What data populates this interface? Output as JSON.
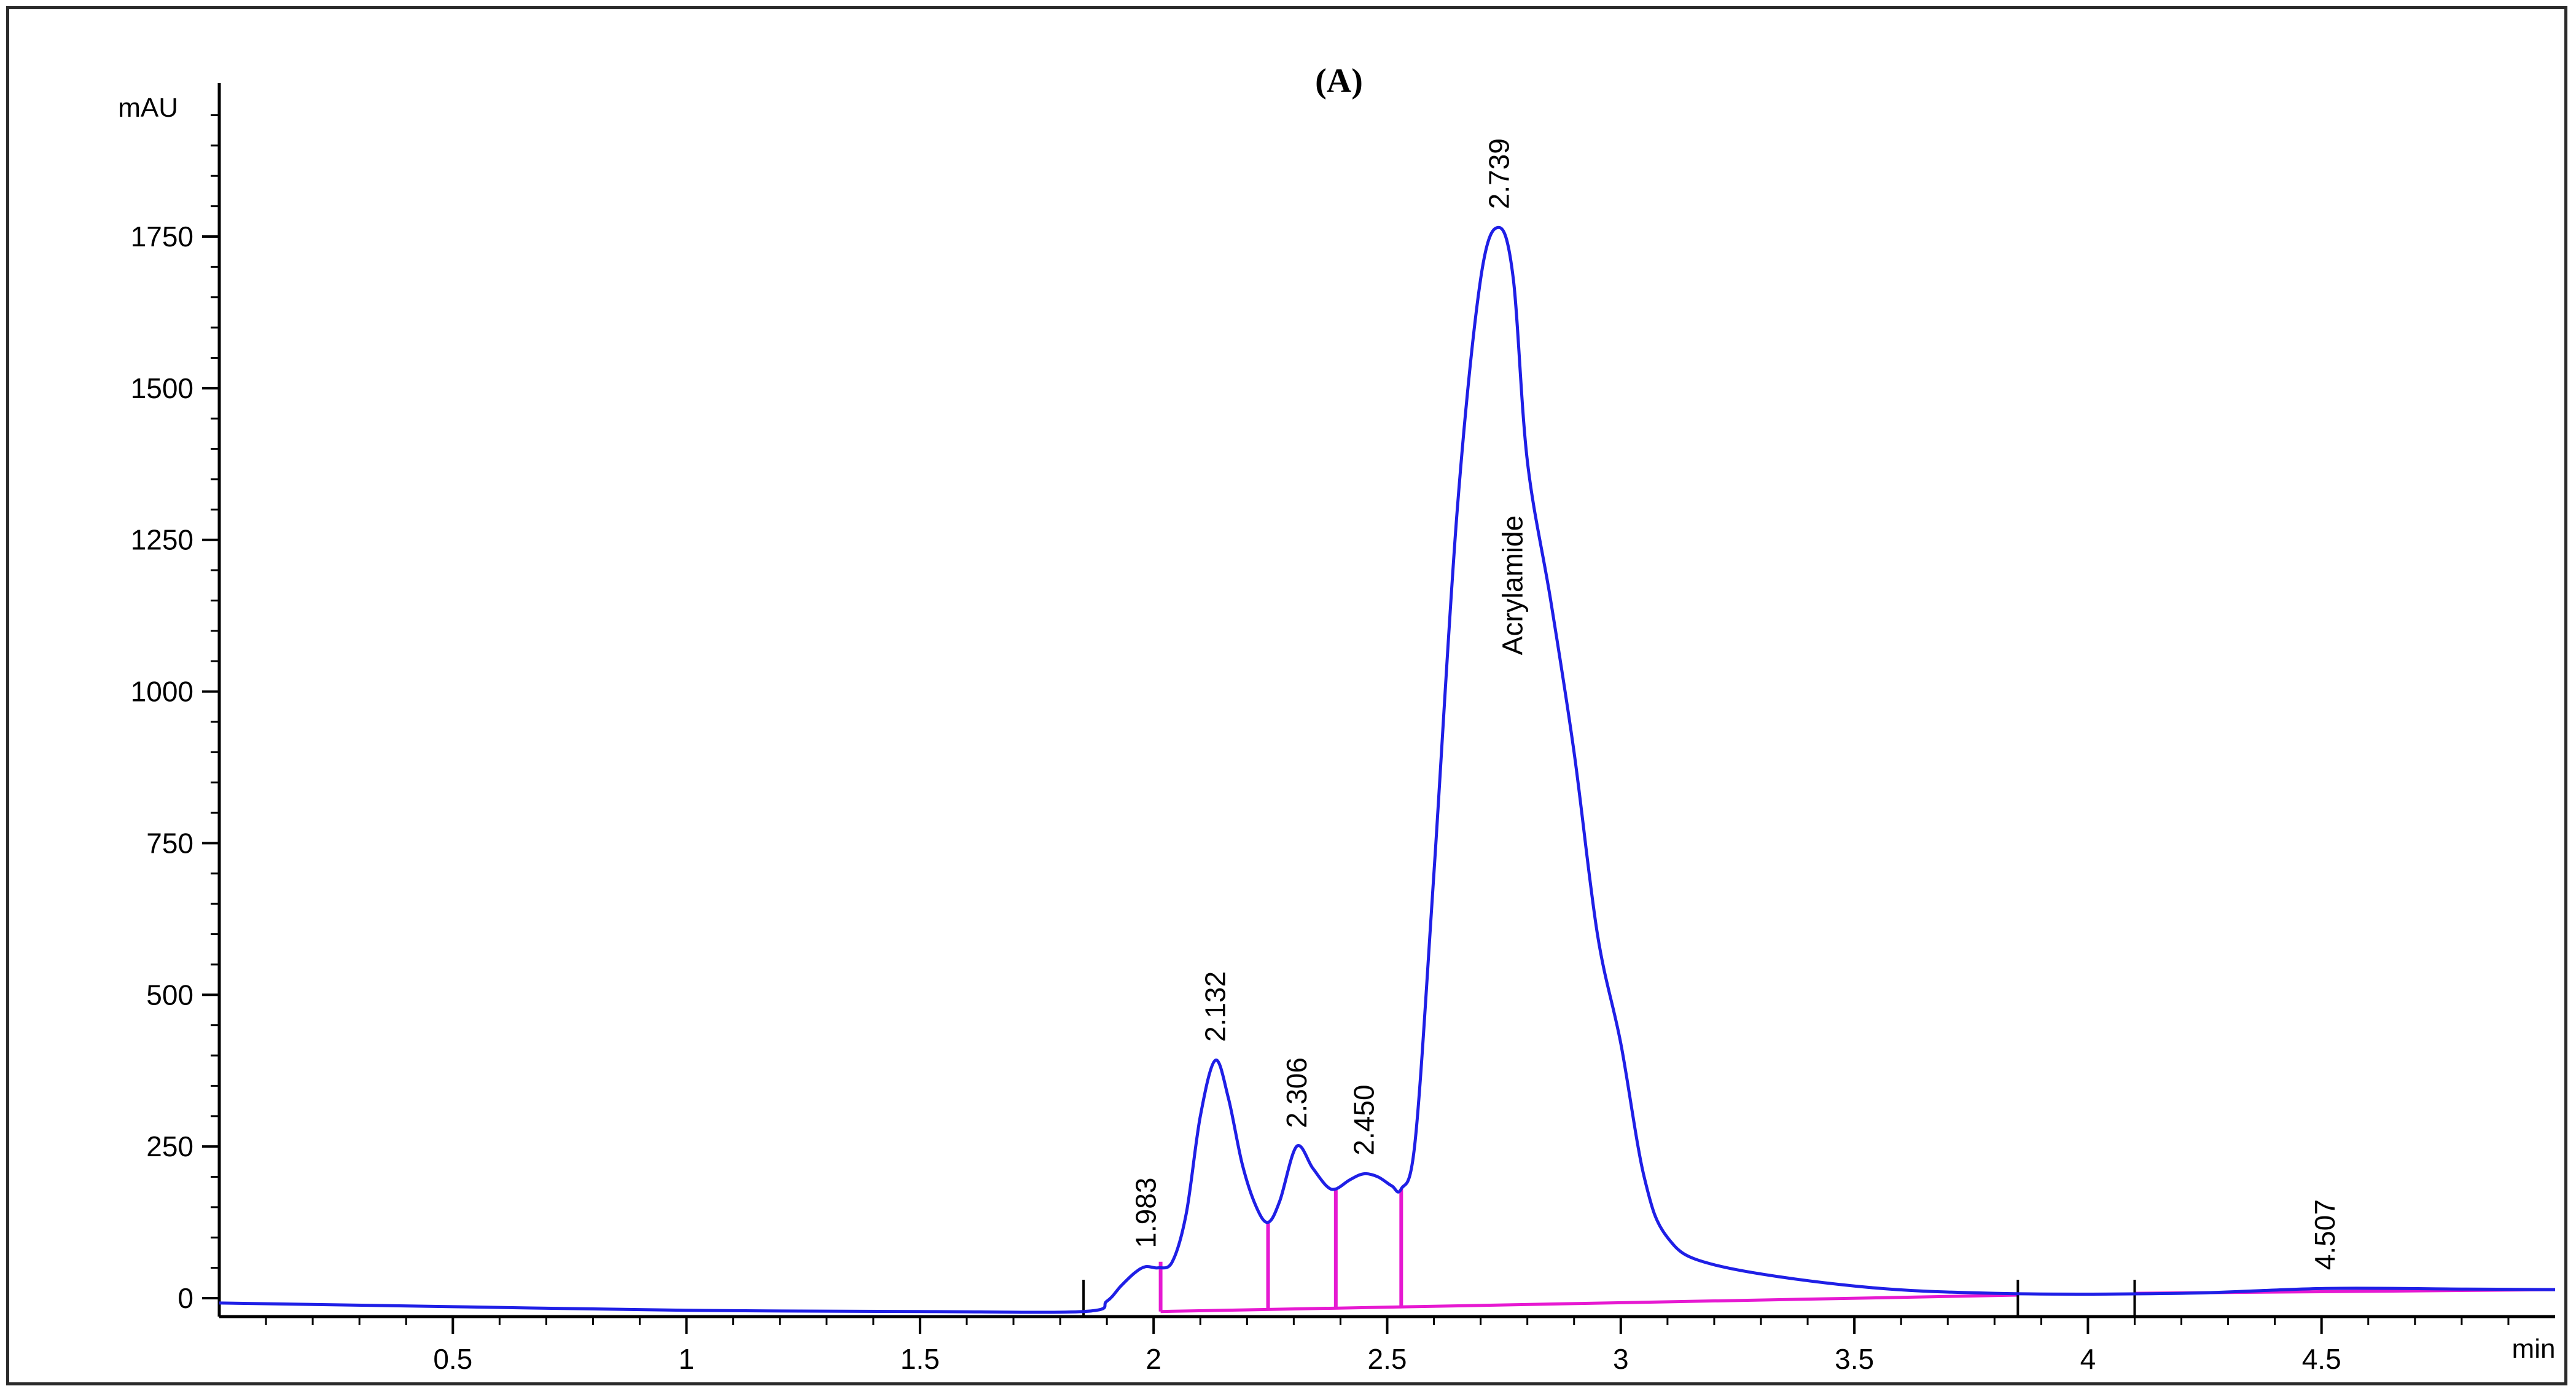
{
  "chart_data": {
    "type": "line",
    "title": "(A)",
    "ylabel": "mAU",
    "xlabel": "min",
    "xlim": [
      0,
      5.0
    ],
    "ylim": [
      -30,
      2000
    ],
    "x_ticks": [
      0.5,
      1,
      1.5,
      2,
      2.5,
      3,
      3.5,
      4,
      4.5
    ],
    "x_tick_labels": [
      "0.5",
      "1",
      "1.5",
      "2",
      "2.5",
      "3",
      "3.5",
      "4",
      "4.5"
    ],
    "y_ticks": [
      0,
      250,
      500,
      750,
      1000,
      1250,
      1500,
      1750
    ],
    "y_tick_labels": [
      "0",
      "250",
      "500",
      "750",
      "1000",
      "1250",
      "1500",
      "1750"
    ],
    "grid": false,
    "legend": "none",
    "colors": {
      "signal": "#1f1fe6",
      "integration": "#e619d1",
      "axis": "#000000"
    },
    "series": [
      {
        "color": "#1f1fe6",
        "points": [
          [
            0.0,
            -8
          ],
          [
            0.5,
            -14
          ],
          [
            1.0,
            -20
          ],
          [
            1.5,
            -22
          ],
          [
            1.85,
            -22
          ],
          [
            1.9,
            -5
          ],
          [
            1.93,
            20
          ],
          [
            1.96,
            42
          ],
          [
            1.983,
            52
          ],
          [
            2.01,
            50
          ],
          [
            2.04,
            60
          ],
          [
            2.07,
            140
          ],
          [
            2.1,
            300
          ],
          [
            2.132,
            392
          ],
          [
            2.16,
            330
          ],
          [
            2.19,
            220
          ],
          [
            2.22,
            150
          ],
          [
            2.245,
            125
          ],
          [
            2.27,
            160
          ],
          [
            2.306,
            250
          ],
          [
            2.34,
            215
          ],
          [
            2.37,
            185
          ],
          [
            2.39,
            180
          ],
          [
            2.42,
            195
          ],
          [
            2.45,
            205
          ],
          [
            2.48,
            200
          ],
          [
            2.51,
            185
          ],
          [
            2.53,
            180
          ],
          [
            2.56,
            260
          ],
          [
            2.6,
            700
          ],
          [
            2.65,
            1300
          ],
          [
            2.7,
            1680
          ],
          [
            2.739,
            1765
          ],
          [
            2.77,
            1680
          ],
          [
            2.8,
            1380
          ],
          [
            2.85,
            1150
          ],
          [
            2.9,
            900
          ],
          [
            2.95,
            600
          ],
          [
            3.0,
            420
          ],
          [
            3.05,
            200
          ],
          [
            3.1,
            100
          ],
          [
            3.2,
            55
          ],
          [
            3.5,
            20
          ],
          [
            3.8,
            8
          ],
          [
            4.2,
            8
          ],
          [
            4.507,
            16
          ],
          [
            4.8,
            15
          ],
          [
            5.0,
            14
          ]
        ]
      }
    ],
    "peaks": [
      {
        "x": 1.983,
        "y": 52,
        "label": "1.983"
      },
      {
        "x": 2.132,
        "y": 392,
        "label": "2.132"
      },
      {
        "x": 2.306,
        "y": 250,
        "label": "2.306"
      },
      {
        "x": 2.45,
        "y": 205,
        "label": "2.450"
      },
      {
        "x": 2.739,
        "y": 1765,
        "label": "2.739"
      },
      {
        "x": 4.507,
        "y": 16,
        "label": "4.507"
      }
    ],
    "annotations": [
      {
        "text": "Acrylamide",
        "x": 2.739,
        "y": 1060
      }
    ],
    "drop_lines": [
      {
        "x": 2.015,
        "y": 60
      },
      {
        "x": 2.245,
        "y": 125
      },
      {
        "x": 2.39,
        "y": 180
      },
      {
        "x": 2.53,
        "y": 180
      }
    ],
    "baseline_segments": [
      [
        [
          2.015,
          -22
        ],
        [
          3.85,
          5
        ]
      ],
      [
        [
          4.1,
          8
        ],
        [
          5.0,
          14
        ]
      ]
    ],
    "event_markers": [
      1.85,
      3.85,
      4.1
    ]
  }
}
